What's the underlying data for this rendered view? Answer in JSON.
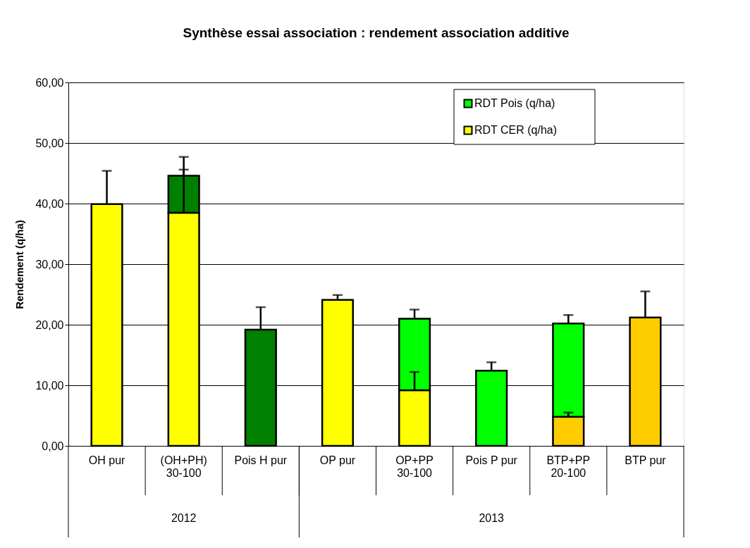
{
  "chart_data": {
    "type": "bar",
    "stacked": true,
    "title": "Synthèse essai association : rendement association additive",
    "ylabel": "Rendement (q/ha)",
    "categories": [
      "OH pur",
      "(OH+PH)\n30-100",
      "Pois H pur",
      "OP pur",
      "OP+PP\n30-100",
      "Pois P pur",
      "BTP+PP\n20-100",
      "BTP pur"
    ],
    "series": [
      {
        "name": "RDT CER (q/ha)",
        "color": "#ffff00",
        "colors": [
          "#ffff00",
          "#ffff00",
          "#ffff00",
          "#ffff00",
          "#ffff00",
          "#ffff00",
          "#ffcc00",
          "#ffcc00"
        ],
        "values": [
          39.9,
          38.5,
          null,
          24.1,
          9.2,
          null,
          4.8,
          21.2
        ],
        "errors": [
          [
            39.9,
            45.4
          ],
          [
            38.5,
            45.6
          ],
          null,
          [
            24.1,
            24.9
          ],
          [
            9.2,
            12.2
          ],
          null,
          [
            4.8,
            5.5
          ],
          [
            21.2,
            25.5
          ]
        ]
      },
      {
        "name": "RDT Pois (q/ha)",
        "color": "#00ff00",
        "colors": [
          "#008000",
          "#008000",
          "#008000",
          "#00ff00",
          "#00ff00",
          "#00ff00",
          "#00ff00",
          "#00ff00"
        ],
        "values": [
          null,
          6.1,
          19.2,
          null,
          11.8,
          12.4,
          15.4,
          null
        ],
        "errors": [
          null,
          [
            44.6,
            47.7
          ],
          [
            19.2,
            22.9
          ],
          null,
          [
            21.0,
            22.5
          ],
          [
            12.4,
            13.8
          ],
          [
            20.2,
            21.6
          ],
          null
        ]
      }
    ],
    "ylim": [
      0,
      60
    ],
    "yticks": [
      {
        "value": 0,
        "label": "0,00"
      },
      {
        "value": 10,
        "label": "10,00"
      },
      {
        "value": 20,
        "label": "20,00"
      },
      {
        "value": 30,
        "label": "30,00"
      },
      {
        "value": 40,
        "label": "40,00"
      },
      {
        "value": 50,
        "label": "50,00"
      },
      {
        "value": 60,
        "label": "60,00"
      }
    ],
    "grid": "y",
    "legend": "top right",
    "annotations": [
      "2012",
      "2013"
    ]
  }
}
